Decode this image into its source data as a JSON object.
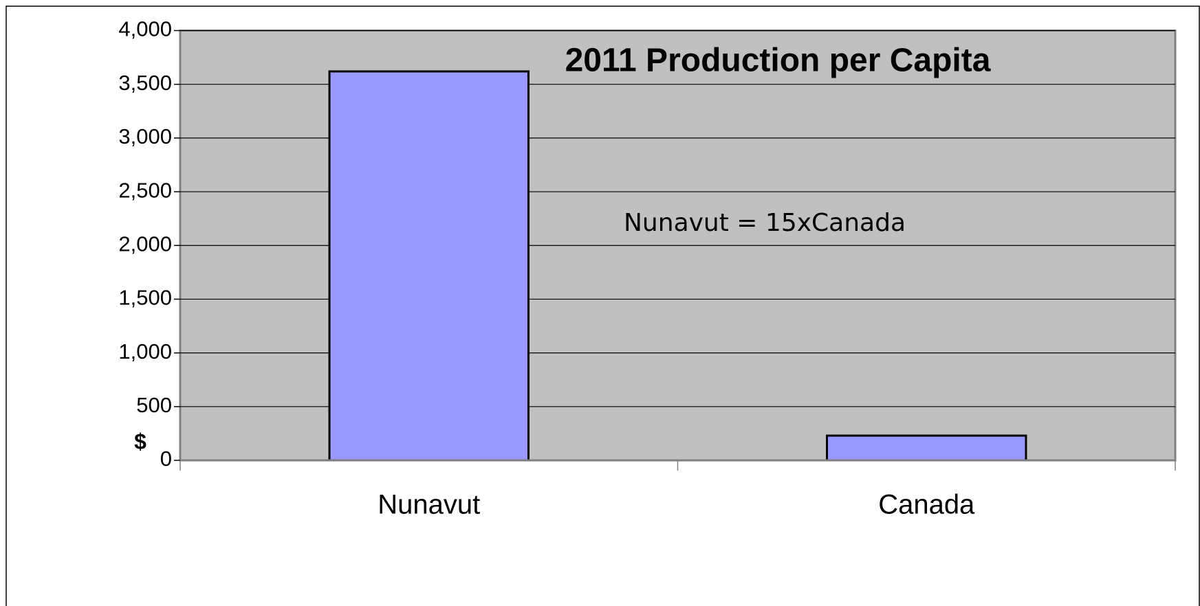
{
  "chart_data": {
    "type": "bar",
    "title": "2011 Production per Capita",
    "y_label": "$",
    "annotation": "Nunavut = 15xCanada",
    "categories": [
      "Nunavut",
      "Canada"
    ],
    "values": [
      3620,
      230
    ],
    "color": "#9999ff",
    "ylim": [
      0,
      4000
    ],
    "yticks": [
      0,
      500,
      {
        "value": 1000,
        "label": "1,000"
      },
      {
        "value": 1500,
        "label": "1,500"
      },
      {
        "value": 2000,
        "label": "2,000"
      },
      {
        "value": 2500,
        "label": "2,500"
      },
      {
        "value": 3000,
        "label": "3,000"
      },
      {
        "value": 3500,
        "label": "3,500"
      },
      {
        "value": 4000,
        "label": "4,000"
      }
    ],
    "grid": true
  }
}
